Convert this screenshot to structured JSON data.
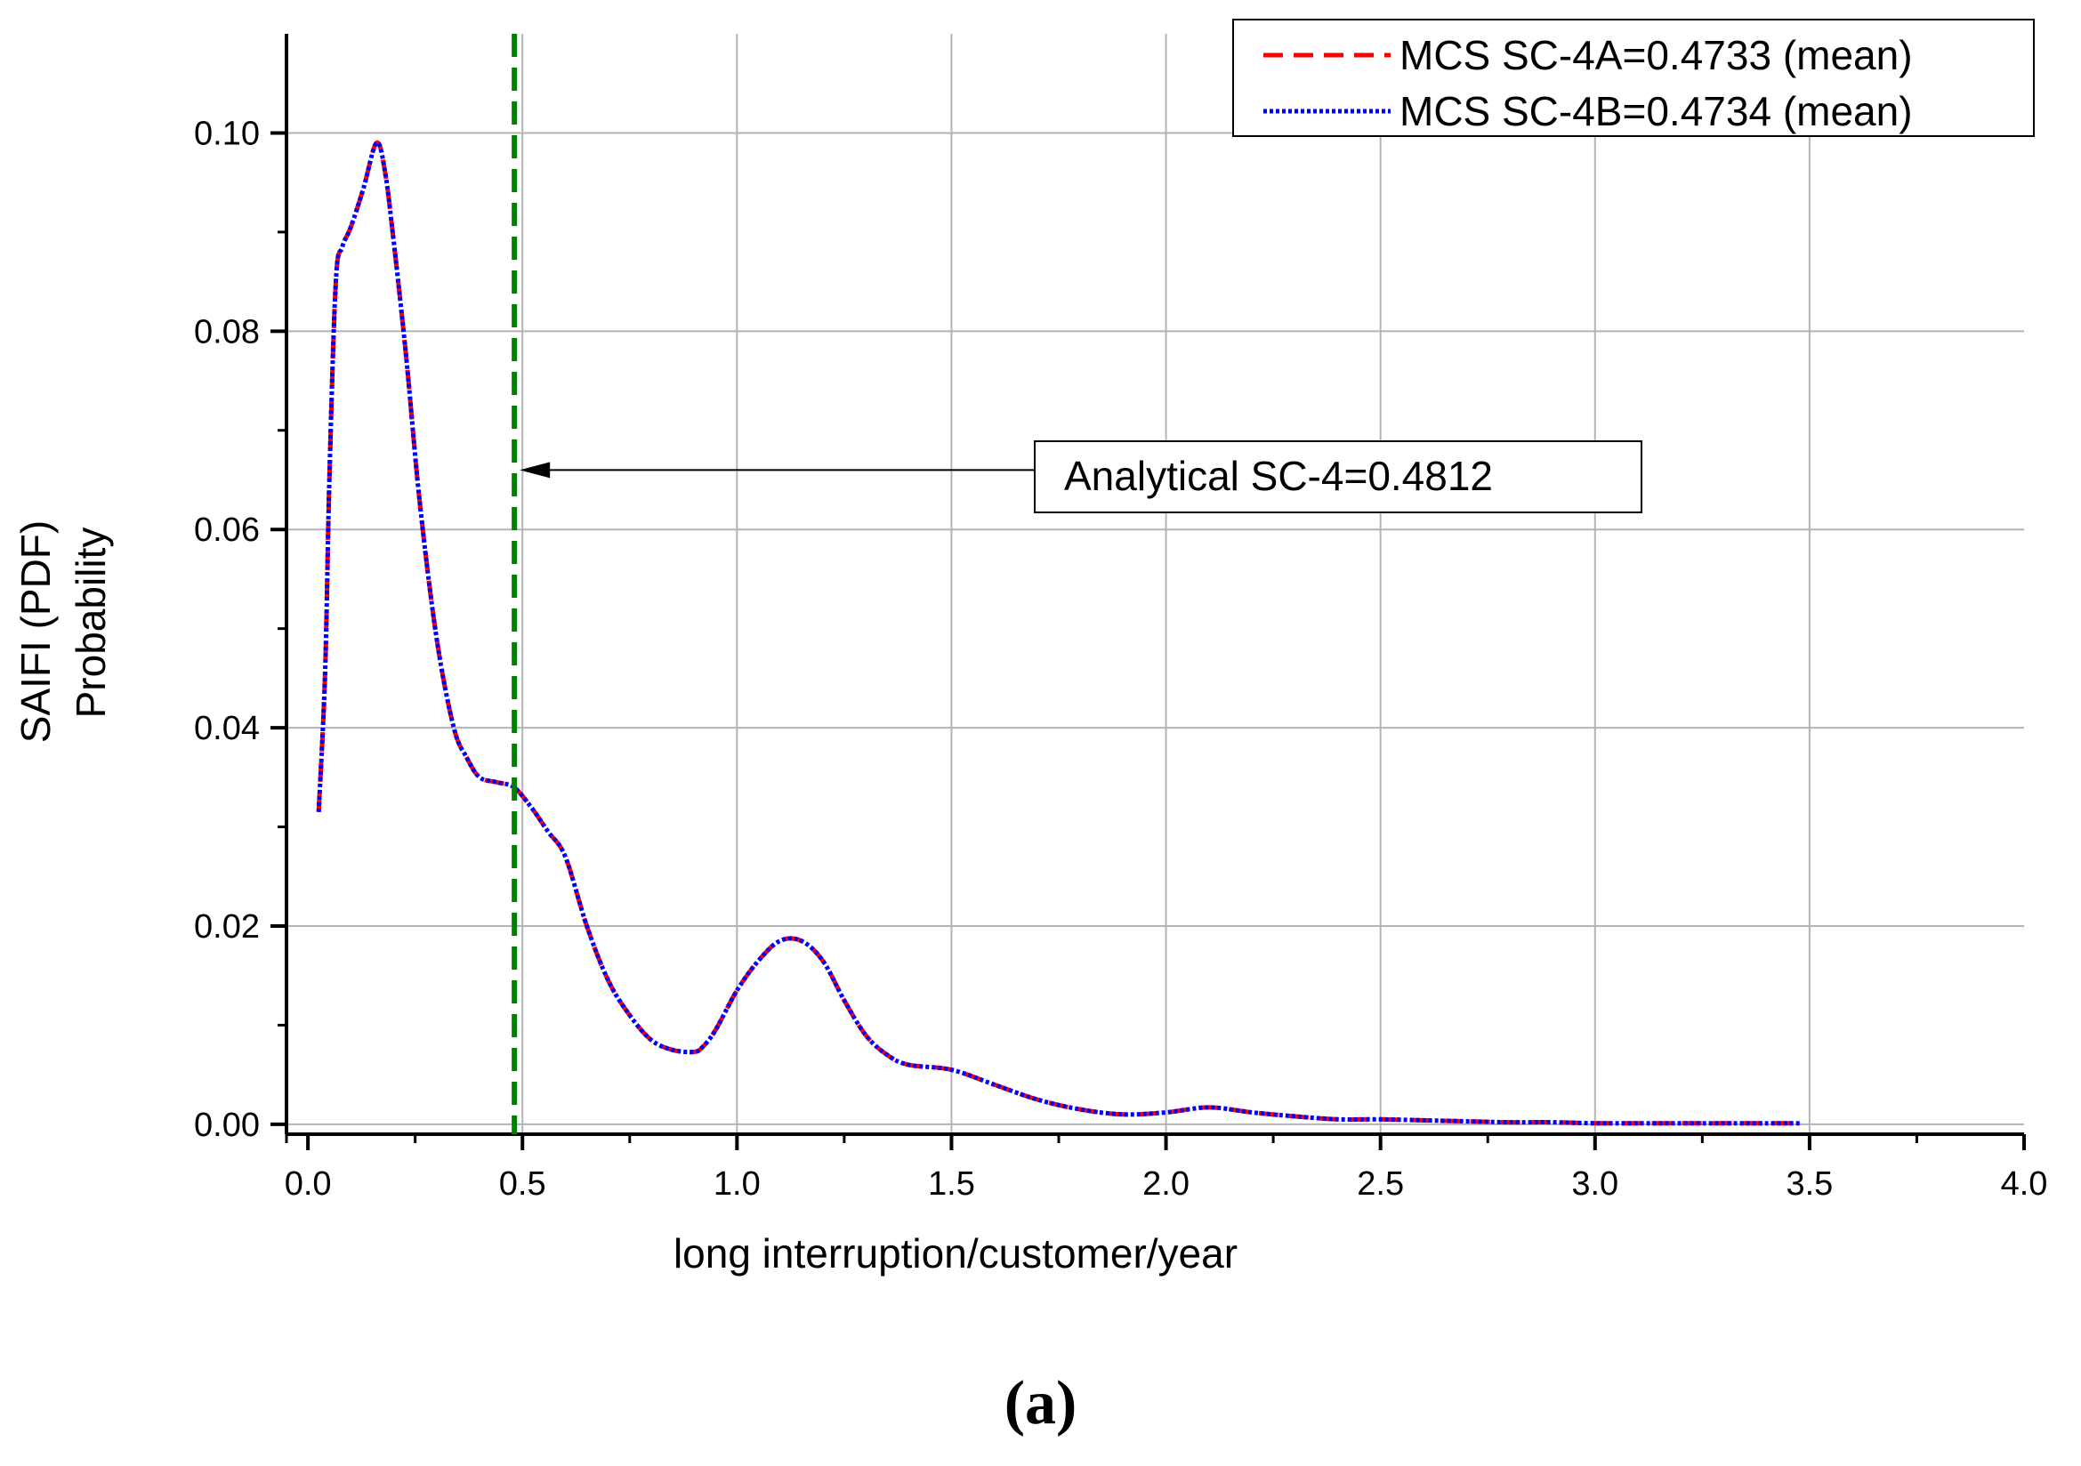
{
  "chart_data": {
    "type": "line",
    "title": "",
    "xlabel": "long interruption/customer/year",
    "ylabel_lines": [
      "SAIFI (PDF)",
      "Probability"
    ],
    "xlim": [
      -0.05,
      4.0
    ],
    "ylim": [
      -0.001,
      0.11
    ],
    "xticks": [
      0.0,
      0.5,
      1.0,
      1.5,
      2.0,
      2.5,
      3.0,
      3.5,
      4.0
    ],
    "xtick_labels": [
      "0.0",
      "0.5",
      "1.0",
      "1.5",
      "2.0",
      "2.5",
      "3.0",
      "3.5",
      "4.0"
    ],
    "yticks": [
      0.0,
      0.02,
      0.04,
      0.06,
      0.08,
      0.1
    ],
    "ytick_labels": [
      "0.00",
      "0.02",
      "0.04",
      "0.06",
      "0.08",
      "0.10"
    ],
    "grid": true,
    "legend_position": "top-right",
    "series": [
      {
        "name": "MCS SC-4A=0.4733 (mean)",
        "color": "#ff0000",
        "style": "dashed",
        "x": [
          0.025,
          0.04,
          0.05,
          0.065,
          0.08,
          0.1,
          0.13,
          0.16,
          0.18,
          0.2,
          0.23,
          0.26,
          0.3,
          0.34,
          0.37,
          0.4,
          0.44,
          0.48,
          0.52,
          0.56,
          0.6,
          0.65,
          0.7,
          0.75,
          0.8,
          0.85,
          0.9,
          0.92,
          0.95,
          1.0,
          1.05,
          1.1,
          1.15,
          1.2,
          1.25,
          1.3,
          1.35,
          1.4,
          1.5,
          1.6,
          1.7,
          1.8,
          1.9,
          2.0,
          2.1,
          2.2,
          2.3,
          2.4,
          2.5,
          2.6,
          2.7,
          2.8,
          2.9,
          3.0,
          3.1,
          3.2,
          3.3,
          3.4,
          3.48
        ],
        "values": [
          0.0315,
          0.0455,
          0.065,
          0.085,
          0.0885,
          0.0905,
          0.0945,
          0.099,
          0.096,
          0.089,
          0.077,
          0.063,
          0.049,
          0.04,
          0.037,
          0.035,
          0.0345,
          0.034,
          0.032,
          0.0295,
          0.027,
          0.02,
          0.0145,
          0.011,
          0.0085,
          0.0075,
          0.0073,
          0.0078,
          0.0095,
          0.0135,
          0.0165,
          0.0185,
          0.0185,
          0.0165,
          0.0125,
          0.009,
          0.007,
          0.006,
          0.0055,
          0.004,
          0.0025,
          0.0015,
          0.001,
          0.0012,
          0.0017,
          0.0012,
          0.0008,
          0.0005,
          0.0005,
          0.0004,
          0.0003,
          0.0002,
          0.0002,
          0.0001,
          0.0001,
          0.0001,
          0.0001,
          0.0001,
          0.0001
        ]
      },
      {
        "name": "MCS SC-4B=0.4734 (mean)",
        "color": "#0000ff",
        "style": "dotted",
        "x": [
          0.025,
          0.04,
          0.05,
          0.065,
          0.08,
          0.1,
          0.13,
          0.16,
          0.18,
          0.2,
          0.23,
          0.26,
          0.3,
          0.34,
          0.37,
          0.4,
          0.44,
          0.48,
          0.52,
          0.56,
          0.6,
          0.65,
          0.7,
          0.75,
          0.8,
          0.85,
          0.9,
          0.92,
          0.95,
          1.0,
          1.05,
          1.1,
          1.15,
          1.2,
          1.25,
          1.3,
          1.35,
          1.4,
          1.5,
          1.6,
          1.7,
          1.8,
          1.9,
          2.0,
          2.1,
          2.2,
          2.3,
          2.4,
          2.5,
          2.6,
          2.7,
          2.8,
          2.9,
          3.0,
          3.1,
          3.2,
          3.3,
          3.4,
          3.48
        ],
        "values": [
          0.0315,
          0.0455,
          0.065,
          0.085,
          0.0885,
          0.0905,
          0.0945,
          0.099,
          0.096,
          0.089,
          0.077,
          0.063,
          0.049,
          0.04,
          0.037,
          0.035,
          0.0345,
          0.034,
          0.032,
          0.0295,
          0.027,
          0.02,
          0.0145,
          0.011,
          0.0085,
          0.0075,
          0.0073,
          0.0078,
          0.0095,
          0.0135,
          0.0165,
          0.0185,
          0.0185,
          0.0165,
          0.0125,
          0.009,
          0.007,
          0.006,
          0.0055,
          0.004,
          0.0025,
          0.0015,
          0.001,
          0.0012,
          0.0017,
          0.0012,
          0.0008,
          0.0005,
          0.0005,
          0.0004,
          0.0003,
          0.0002,
          0.0002,
          0.0001,
          0.0001,
          0.0001,
          0.0001,
          0.0001,
          0.0001
        ]
      }
    ],
    "reference_line": {
      "x": 0.4812,
      "color": "#008000",
      "style": "dashed"
    },
    "annotation": {
      "text": "Analytical SC-4=0.4812",
      "points_to_x": 0.4812,
      "points_to_y": 0.066
    }
  },
  "panel_label": "(a)"
}
